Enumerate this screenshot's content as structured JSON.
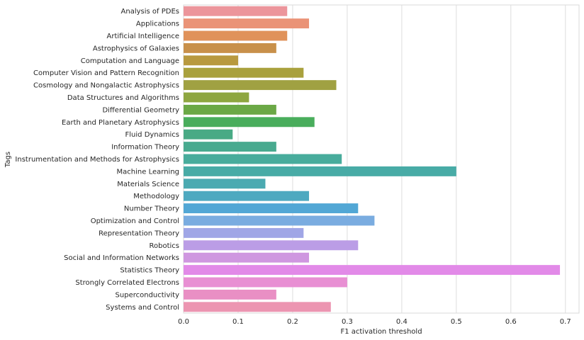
{
  "chart_data": {
    "type": "bar",
    "orientation": "horizontal",
    "categories": [
      "Analysis of PDEs",
      "Applications",
      "Artificial Intelligence",
      "Astrophysics of Galaxies",
      "Computation and Language",
      "Computer Vision and Pattern Recognition",
      "Cosmology and Nongalactic Astrophysics",
      "Data Structures and Algorithms",
      "Differential Geometry",
      "Earth and Planetary Astrophysics",
      "Fluid Dynamics",
      "Information Theory",
      "Instrumentation and Methods for Astrophysics",
      "Machine Learning",
      "Materials Science",
      "Methodology",
      "Number Theory",
      "Optimization and Control",
      "Representation Theory",
      "Robotics",
      "Social and Information Networks",
      "Statistics Theory",
      "Strongly Correlated Electrons",
      "Superconductivity",
      "Systems and Control"
    ],
    "values": [
      0.19,
      0.23,
      0.19,
      0.17,
      0.1,
      0.22,
      0.28,
      0.12,
      0.17,
      0.24,
      0.09,
      0.17,
      0.29,
      0.5,
      0.15,
      0.23,
      0.32,
      0.35,
      0.22,
      0.32,
      0.23,
      0.69,
      0.3,
      0.17,
      0.27
    ],
    "colors": [
      "#ec959b",
      "#ea9377",
      "#e0925a",
      "#c8904a",
      "#b8993f",
      "#a9a13d",
      "#a0a142",
      "#8ea640",
      "#6ba846",
      "#49ad5c",
      "#49aa85",
      "#48aa8f",
      "#48ac9c",
      "#48aba6",
      "#4baab1",
      "#4ea9c0",
      "#52a7d5",
      "#7aace0",
      "#a0a6e6",
      "#bb9de6",
      "#cf97e0",
      "#e28ae8",
      "#e88fd3",
      "#e98fc4",
      "#ec95b1"
    ],
    "xlabel": "F1 activation threshold",
    "ylabel": "Tags",
    "xlim": [
      0,
      0.725
    ],
    "xticks": [
      "0.0",
      "0.1",
      "0.2",
      "0.3",
      "0.4",
      "0.5",
      "0.6",
      "0.7"
    ],
    "grid": "vertical",
    "legend": "none"
  }
}
